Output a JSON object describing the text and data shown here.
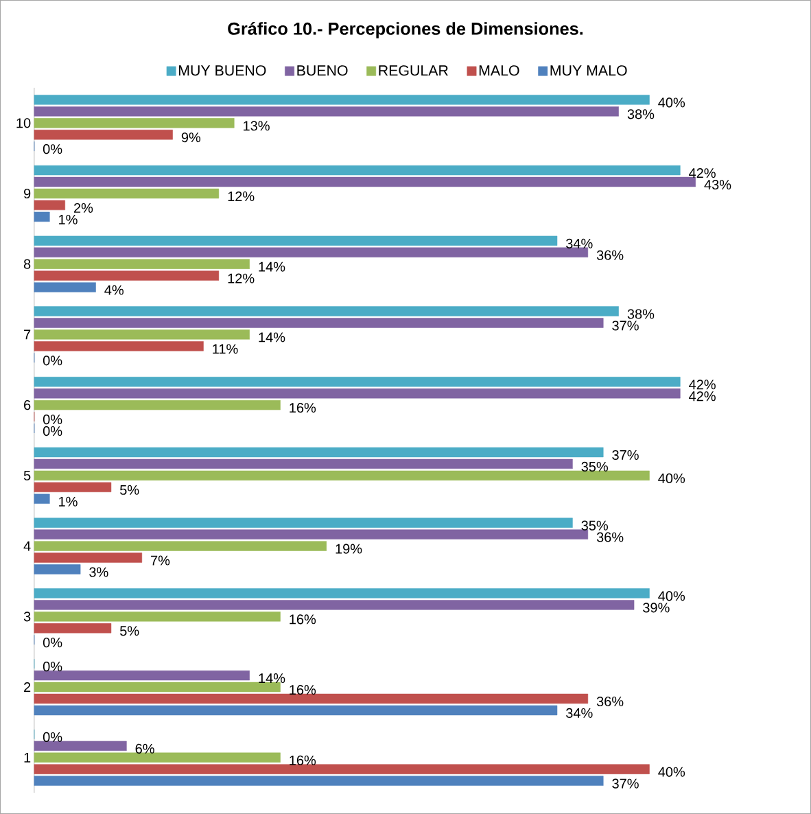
{
  "chart_data": {
    "type": "bar",
    "orientation": "horizontal",
    "title": "Gráfico 10.- Percepciones de Dimensiones.",
    "categories": [
      "10",
      "9",
      "8",
      "7",
      "6",
      "5",
      "4",
      "3",
      "2",
      "1"
    ],
    "legend": "top",
    "tick_labels": "y",
    "series": [
      {
        "name": "MUY BUENO",
        "color": "#4bacc6",
        "values": [
          40,
          42,
          34,
          38,
          42,
          37,
          35,
          40,
          0,
          0
        ],
        "value_labels": [
          "40%",
          "42%",
          "34%",
          "38%",
          "42%",
          "37%",
          "35%",
          "40%",
          "0%",
          "0%"
        ]
      },
      {
        "name": "BUENO",
        "color": "#8064a2",
        "values": [
          38,
          43,
          36,
          37,
          42,
          35,
          36,
          39,
          14,
          6
        ],
        "value_labels": [
          "38%",
          "43%",
          "36%",
          "37%",
          "42%",
          "35%",
          "36%",
          "39%",
          "14%",
          "6%"
        ]
      },
      {
        "name": "REGULAR",
        "color": "#9bbb59",
        "values": [
          13,
          12,
          14,
          14,
          16,
          40,
          19,
          16,
          16,
          16
        ],
        "value_labels": [
          "13%",
          "12%",
          "14%",
          "14%",
          "16%",
          "40%",
          "19%",
          "16%",
          "16%",
          "16%"
        ]
      },
      {
        "name": "MALO",
        "color": "#c0504d",
        "values": [
          9,
          2,
          12,
          11,
          0,
          5,
          7,
          5,
          36,
          40
        ],
        "value_labels": [
          "9%",
          "2%",
          "12%",
          "11%",
          "0%",
          "5%",
          "7%",
          "5%",
          "36%",
          "40%"
        ]
      },
      {
        "name": "MUY MALO",
        "color": "#4f81bd",
        "values": [
          0,
          1,
          4,
          0,
          0,
          1,
          3,
          0,
          34,
          37
        ],
        "value_labels": [
          "0%",
          "1%",
          "4%",
          "0%",
          "0%",
          "1%",
          "3%",
          "0%",
          "34%",
          "37%"
        ]
      }
    ]
  }
}
